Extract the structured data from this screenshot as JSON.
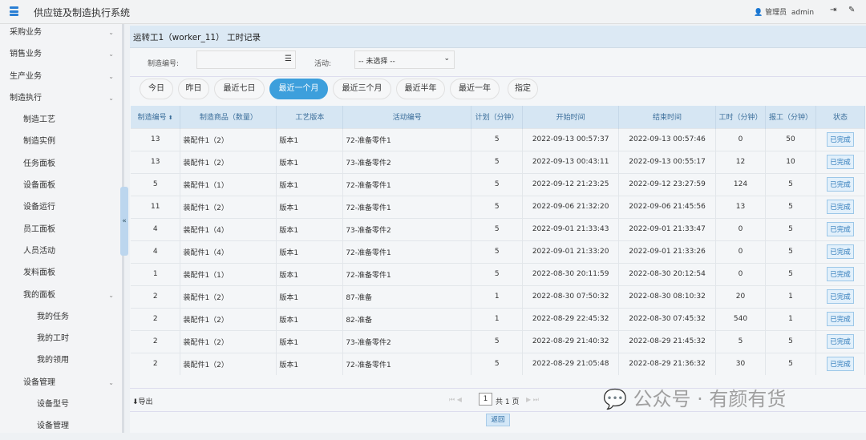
{
  "header": {
    "title": "供应链及制造执行系统",
    "user_role": "管理员",
    "user_name": "admin"
  },
  "sidebar": {
    "items": [
      {
        "label": "采购业务",
        "level": 1,
        "chevron": true
      },
      {
        "label": "销售业务",
        "level": 1,
        "chevron": true
      },
      {
        "label": "生产业务",
        "level": 1,
        "chevron": true
      },
      {
        "label": "制造执行",
        "level": 1,
        "chevron": true
      },
      {
        "label": "制造工艺",
        "level": 2
      },
      {
        "label": "制造实例",
        "level": 2
      },
      {
        "label": "任务面板",
        "level": 2
      },
      {
        "label": "设备面板",
        "level": 2
      },
      {
        "label": "设备运行",
        "level": 2
      },
      {
        "label": "员工面板",
        "level": 2
      },
      {
        "label": "人员活动",
        "level": 2
      },
      {
        "label": "发料面板",
        "level": 2
      },
      {
        "label": "我的面板",
        "level": 2,
        "chevron": true
      },
      {
        "label": "我的任务",
        "level": 3
      },
      {
        "label": "我的工时",
        "level": 3
      },
      {
        "label": "我的领用",
        "level": 3
      },
      {
        "label": "设备管理",
        "level": 2,
        "chevron": true
      },
      {
        "label": "设备型号",
        "level": 3
      },
      {
        "label": "设备管理",
        "level": 3
      }
    ]
  },
  "page": {
    "title": "运转工1（worker_11） 工时记录",
    "filter": {
      "order_label": "制造编号:",
      "order_value": "",
      "activity_label": "活动:",
      "activity_value": "-- 未选择 --"
    },
    "ranges": [
      "今日",
      "昨日",
      "最近七日",
      "最近一个月",
      "最近三个月",
      "最近半年",
      "最近一年",
      "指定"
    ],
    "active_range": "最近一个月",
    "columns": [
      "制造编号",
      "制造商品（数量）",
      "工艺版本",
      "活动编号",
      "计划（分钟）",
      "开始时间",
      "结束时间",
      "工时（分钟）",
      "报工（分钟）",
      "状态"
    ],
    "rows": [
      [
        "13",
        "装配件1（2）",
        "版本1",
        "72-准备零件1",
        "5",
        "2022-09-13 00:57:37",
        "2022-09-13 00:57:46",
        "0",
        "50",
        "已完成"
      ],
      [
        "13",
        "装配件1（2）",
        "版本1",
        "73-准备零件2",
        "5",
        "2022-09-13 00:43:11",
        "2022-09-13 00:55:17",
        "12",
        "10",
        "已完成"
      ],
      [
        "5",
        "装配件1（1）",
        "版本1",
        "72-准备零件1",
        "5",
        "2022-09-12 21:23:25",
        "2022-09-12 23:27:59",
        "124",
        "5",
        "已完成"
      ],
      [
        "11",
        "装配件1（2）",
        "版本1",
        "72-准备零件1",
        "5",
        "2022-09-06 21:32:20",
        "2022-09-06 21:45:56",
        "13",
        "5",
        "已完成"
      ],
      [
        "4",
        "装配件1（4）",
        "版本1",
        "73-准备零件2",
        "5",
        "2022-09-01 21:33:43",
        "2022-09-01 21:33:47",
        "0",
        "5",
        "已完成"
      ],
      [
        "4",
        "装配件1（4）",
        "版本1",
        "72-准备零件1",
        "5",
        "2022-09-01 21:33:20",
        "2022-09-01 21:33:26",
        "0",
        "5",
        "已完成"
      ],
      [
        "1",
        "装配件1（1）",
        "版本1",
        "72-准备零件1",
        "5",
        "2022-08-30 20:11:59",
        "2022-08-30 20:12:54",
        "0",
        "5",
        "已完成"
      ],
      [
        "2",
        "装配件1（2）",
        "版本1",
        "87-准备",
        "1",
        "2022-08-30 07:50:32",
        "2022-08-30 08:10:32",
        "20",
        "1",
        "已完成"
      ],
      [
        "2",
        "装配件1（2）",
        "版本1",
        "82-准备",
        "1",
        "2022-08-29 22:45:32",
        "2022-08-30 07:45:32",
        "540",
        "1",
        "已完成"
      ],
      [
        "2",
        "装配件1（2）",
        "版本1",
        "73-准备零件2",
        "5",
        "2022-08-29 21:40:32",
        "2022-08-29 21:45:32",
        "5",
        "5",
        "已完成"
      ],
      [
        "2",
        "装配件1（2）",
        "版本1",
        "72-准备零件1",
        "5",
        "2022-08-29 21:05:48",
        "2022-08-29 21:36:32",
        "30",
        "5",
        "已完成"
      ]
    ],
    "export_label": "导出",
    "page_input": "1",
    "page_total": "共 1 页",
    "back_label": "返回"
  },
  "watermark": "公众号 · 有颜有货"
}
